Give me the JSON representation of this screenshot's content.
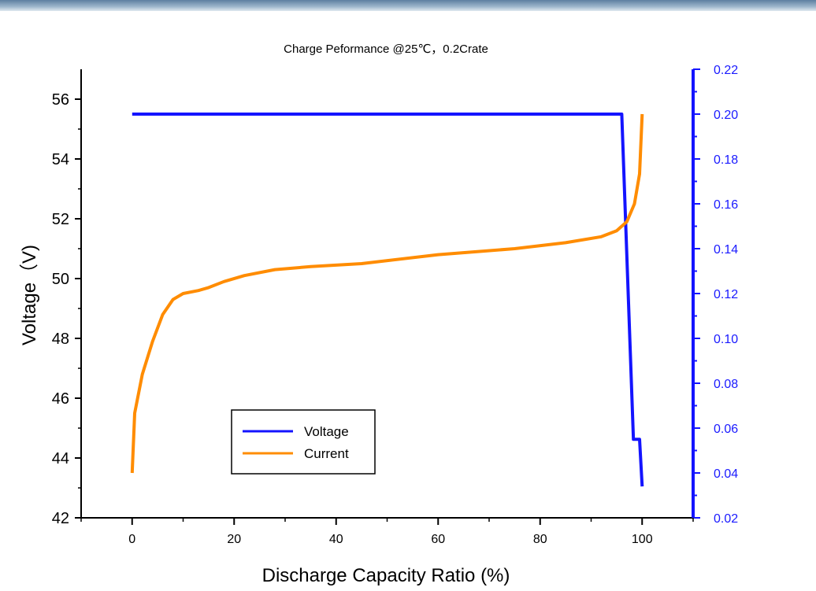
{
  "chart_data": {
    "type": "line",
    "title": "Charge Peformance @25℃，0.2Crate",
    "xlabel": "Discharge Capacity Ratio (%)",
    "ylabel": "Voltage（V)",
    "y2label": "",
    "xlim": [
      -10,
      110
    ],
    "ylim": [
      42,
      57
    ],
    "y2lim": [
      0.02,
      0.22
    ],
    "x_ticks": [
      0,
      20,
      40,
      60,
      80,
      100
    ],
    "y_ticks": [
      42,
      44,
      46,
      48,
      50,
      52,
      54,
      56
    ],
    "y2_ticks": [
      "0.02",
      "0.04",
      "0.06",
      "0.08",
      "0.10",
      "0.12",
      "0.14",
      "0.16",
      "0.18",
      "0.20",
      "0.22"
    ],
    "grid": false,
    "legend_position": "lower-left",
    "series": [
      {
        "name": "Voltage",
        "color": "#1414ff",
        "axis": "right",
        "points": [
          [
            0,
            0.2
          ],
          [
            96,
            0.2
          ],
          [
            98.3,
            0.055
          ],
          [
            99.5,
            0.055
          ],
          [
            100,
            0.034
          ]
        ]
      },
      {
        "name": "Current",
        "color": "#ff8c00",
        "axis": "left",
        "points": [
          [
            0,
            43.5
          ],
          [
            0.5,
            45.5
          ],
          [
            2,
            46.8
          ],
          [
            4,
            47.9
          ],
          [
            6,
            48.8
          ],
          [
            8,
            49.3
          ],
          [
            10,
            49.5
          ],
          [
            13,
            49.6
          ],
          [
            15,
            49.7
          ],
          [
            18,
            49.9
          ],
          [
            22,
            50.1
          ],
          [
            28,
            50.3
          ],
          [
            35,
            50.4
          ],
          [
            45,
            50.5
          ],
          [
            60,
            50.8
          ],
          [
            75,
            51.0
          ],
          [
            85,
            51.2
          ],
          [
            92,
            51.4
          ],
          [
            95,
            51.6
          ],
          [
            97,
            51.9
          ],
          [
            98.5,
            52.5
          ],
          [
            99.5,
            53.5
          ],
          [
            100,
            55.5
          ]
        ]
      }
    ]
  }
}
